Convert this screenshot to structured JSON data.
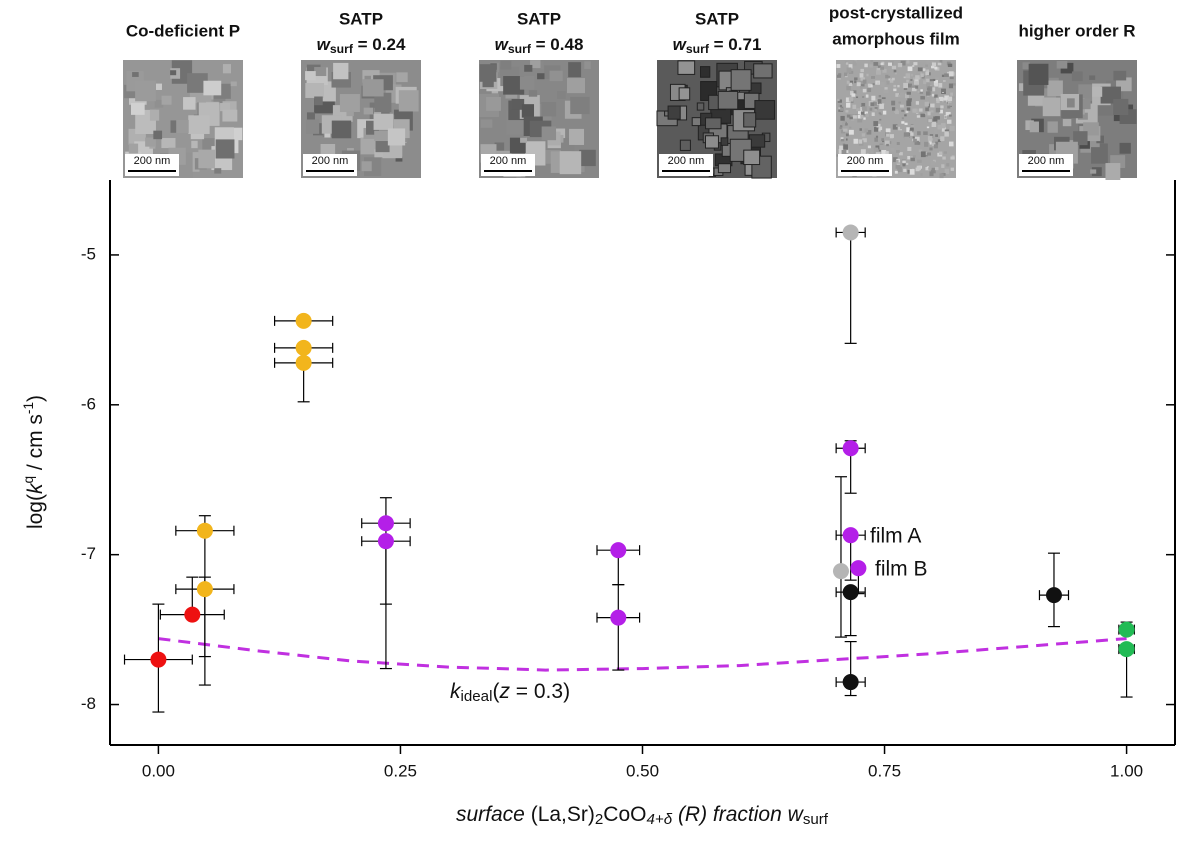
{
  "chart_data": {
    "type": "scatter",
    "panels": [
      {
        "label": [
          "Co-deficient P"
        ],
        "color": "#f2b51c",
        "scale": "200 nm",
        "tone": 150
      },
      {
        "label": [
          "SATP"
        ],
        "wlabel": [
          "w",
          "surf",
          " = 0.24"
        ],
        "color": "#b41fe8",
        "scale": "200 nm",
        "tone": 140
      },
      {
        "label": [
          "SATP"
        ],
        "wlabel": [
          "w",
          "surf",
          " = 0.48"
        ],
        "color": "#b41fe8",
        "scale": "200 nm",
        "tone": 135
      },
      {
        "label": [
          "SATP"
        ],
        "wlabel": [
          "w",
          "surf",
          " = 0.71"
        ],
        "color": "#b41fe8",
        "scale": "200 nm",
        "tone": 90
      },
      {
        "label": [
          "post-crystallized",
          "amorphous film"
        ],
        "color": "#b5b5b5",
        "scale": "200 nm",
        "tone": 165
      },
      {
        "label": [
          "higher order R"
        ],
        "color": "#111111",
        "scale": "200 nm",
        "tone": 125
      }
    ],
    "xlim": [
      -0.05,
      1.05
    ],
    "ylim": [
      -8.27,
      -4.5
    ],
    "xticks": [
      {
        "value": 0,
        "label": "0.00"
      },
      {
        "value": 0.25,
        "label": "0.25"
      },
      {
        "value": 0.5,
        "label": "0.50"
      },
      {
        "value": 0.75,
        "label": "0.75"
      },
      {
        "value": 1,
        "label": "1.00"
      }
    ],
    "yticks": [
      -8,
      -7,
      -6,
      -5
    ],
    "xlabel": [
      "surface",
      " (La,Sr)",
      "2",
      "CoO",
      "4+δ",
      " (R) fraction ",
      "w",
      "surf"
    ],
    "ylabel": [
      "log(",
      "k",
      "q",
      " / cm s",
      "-1",
      ")"
    ],
    "series": [
      {
        "color": "#f2b51c",
        "x": [
          0.15,
          0.15,
          0.15,
          0.048,
          0.048
        ],
        "values": [
          -5.44,
          -5.62,
          -5.72,
          -6.84,
          -7.23
        ],
        "xerr": [
          0.03,
          0.03,
          0.03,
          0.03,
          0.03
        ],
        "yerr": [
          [
            0,
            0
          ],
          [
            0,
            0
          ],
          [
            0.26,
            0
          ],
          [
            0.84,
            0.1
          ],
          [
            0.64,
            0.08
          ]
        ]
      },
      {
        "color": "#ee1111",
        "x": [
          0,
          0.035
        ],
        "values": [
          -7.7,
          -7.4
        ],
        "xerr": [
          0.035,
          0.033
        ],
        "yerr": [
          [
            0.35,
            0.37
          ],
          [
            0,
            0.25
          ]
        ]
      },
      {
        "color": "#b41fe8",
        "x": [
          0.235,
          0.235,
          0.475,
          0.475,
          0.715,
          0.715,
          0.723
        ],
        "values": [
          -6.79,
          -6.91,
          -6.97,
          -7.42,
          -6.29,
          -6.87,
          -7.09
        ],
        "xerr": [
          0.025,
          0.025,
          0.022,
          0.022,
          0.015,
          0.015,
          0
        ],
        "yerr": [
          [
            0.54,
            0.17
          ],
          [
            0.85,
            0
          ],
          [
            0.23,
            0
          ],
          [
            0.35,
            0.22
          ],
          [
            0.3,
            0.05
          ],
          [
            0.3,
            0
          ],
          [
            0.17,
            0
          ]
        ]
      },
      {
        "color": "#b5b5b5",
        "x": [
          0.715,
          0.705
        ],
        "values": [
          -4.85,
          -7.11
        ],
        "xerr": [
          0.015,
          0
        ],
        "yerr": [
          [
            0.74,
            0
          ],
          [
            0.44,
            0.63
          ]
        ]
      },
      {
        "color": "#111111",
        "x": [
          0.715,
          0.715,
          0.925
        ],
        "values": [
          -7.25,
          -7.85,
          -7.27
        ],
        "xerr": [
          0.015,
          0.015,
          0.015
        ],
        "yerr": [
          [
            0.29,
            0
          ],
          [
            0.09,
            0.27
          ],
          [
            0.21,
            0.28
          ]
        ]
      },
      {
        "color": "#22bb55",
        "x": [
          1,
          1
        ],
        "values": [
          -7.5,
          -7.63
        ],
        "xerr": [
          0.008,
          0.008
        ],
        "yerr": [
          [
            0,
            0.05
          ],
          [
            0.32,
            0
          ]
        ]
      }
    ],
    "curve": {
      "color": "#c030e0",
      "x": [
        0,
        0.1,
        0.2,
        0.3,
        0.4,
        0.5,
        0.6,
        0.7,
        0.8,
        0.9,
        1
      ],
      "values": [
        -7.56,
        -7.64,
        -7.71,
        -7.75,
        -7.77,
        -7.76,
        -7.74,
        -7.7,
        -7.66,
        -7.61,
        -7.56
      ]
    },
    "curve_label": [
      "k",
      "ideal",
      "(",
      "z",
      " = 0.3)"
    ],
    "annotations": [
      "film A",
      "film B"
    ]
  }
}
